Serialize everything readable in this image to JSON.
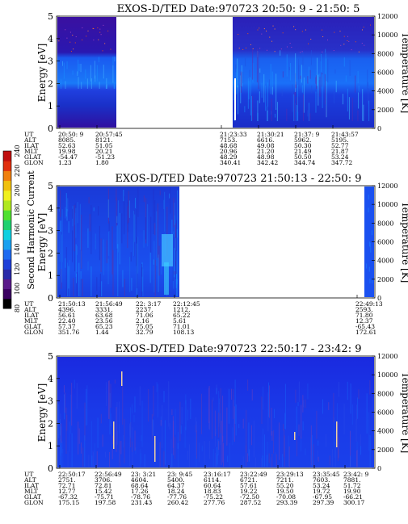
{
  "colorbar": {
    "label": "Second Harmonic Current",
    "ticks": [
      "80",
      "100",
      "120",
      "140",
      "160",
      "180",
      "200",
      "220",
      "240"
    ],
    "colors": [
      "#000000",
      "#3a0060",
      "#5a1a8a",
      "#2a2aa8",
      "#1f3fd8",
      "#1f6af0",
      "#1aa0f0",
      "#10d0e0",
      "#20d070",
      "#50e030",
      "#b0e820",
      "#f0f020",
      "#f0c010",
      "#f08010",
      "#e03010",
      "#c01010"
    ]
  },
  "chart_data": [
    {
      "type": "heatmap",
      "title": "EXOS-D/TED   Date:970723  20:50: 9 - 21:50: 5",
      "ylabel": "Energy [eV]",
      "y2label": "Temperature [K]",
      "ylim": [
        0,
        5
      ],
      "y2lim": [
        0,
        12000
      ],
      "yticks": [
        "0",
        "1",
        "2",
        "3",
        "4",
        "5"
      ],
      "y2ticks": [
        "0",
        "2000",
        "4000",
        "6000",
        "8000",
        "10000",
        "12000"
      ],
      "data_gap": true,
      "row_labels": [
        "UT",
        "ALT",
        "ILAT",
        "MLT",
        "GLAT",
        "GLON"
      ],
      "columns": [
        [
          "20:50: 9",
          "8085.",
          "52.63",
          "19.98",
          "-54.47",
          "1.23"
        ],
        [
          "20:57:45",
          "8121.",
          "51.05",
          "20.21",
          "-51.23",
          "1.80"
        ],
        [
          "21:23:33",
          "7153.",
          "48.68",
          "20.96",
          "48.29",
          "340.41"
        ],
        [
          "21:30:21",
          "6616.",
          "49.08",
          "21.20",
          "48.98",
          "342.42"
        ],
        [
          "21:37: 9",
          "5962.",
          "50.30",
          "21.49",
          "50.50",
          "344.74"
        ],
        [
          "21:43:57",
          "5195.",
          "52.77",
          "21.87",
          "53.24",
          "347.72"
        ]
      ]
    },
    {
      "type": "heatmap",
      "title": "EXOS-D/TED   Date:970723  21:50:13 - 22:50: 9",
      "ylabel": "Energy [eV]",
      "y2label": "Temperature [K]",
      "ylim": [
        0,
        5
      ],
      "y2lim": [
        0,
        12000
      ],
      "yticks": [
        "0",
        "1",
        "2",
        "3",
        "4",
        "5"
      ],
      "y2ticks": [
        "0",
        "2000",
        "4000",
        "6000",
        "8000",
        "10000",
        "12000"
      ],
      "row_labels": [
        "UT",
        "ALT",
        "ILAT",
        "MLT",
        "GLAT",
        "GLON"
      ],
      "columns": [
        [
          "21:50:13",
          "4396.",
          "56.61",
          "22.40",
          "57.37",
          "351.76"
        ],
        [
          "21:56:49",
          "3331.",
          "63.68",
          "23.56",
          "65.23",
          "1.44"
        ],
        [
          "22: 3:17",
          "2237.",
          "71.06",
          "2.16",
          "75.05",
          "32.79"
        ],
        [
          "22:12:45",
          "1212.",
          "65.22",
          "5.61",
          "71.01",
          "108.13"
        ],
        [
          "22:49:13",
          "2593.",
          "71.80",
          "12.37",
          "-65.43",
          "172.61"
        ]
      ]
    },
    {
      "type": "heatmap",
      "title": "EXOS-D/TED   Date:970723  22:50:17 - 23:42: 9",
      "ylabel": "Energy [eV]",
      "y2label": "Temperature [K]",
      "ylim": [
        0,
        5
      ],
      "y2lim": [
        0,
        12000
      ],
      "yticks": [
        "0",
        "1",
        "2",
        "3",
        "4",
        "5"
      ],
      "y2ticks": [
        "0",
        "2000",
        "4000",
        "6000",
        "8000",
        "10000",
        "12000"
      ],
      "row_labels": [
        "UT",
        "ALT",
        "ILAT",
        "MLT",
        "GLAT",
        "GLON"
      ],
      "columns": [
        [
          "22:50:17",
          "2751.",
          "72.71",
          "12.77",
          "-67.32",
          "175.15"
        ],
        [
          "22:56:49",
          "3706.",
          "72.81",
          "15.42",
          "-75.71",
          "197.58"
        ],
        [
          "23: 3:21",
          "4604.",
          "68.64",
          "17.26",
          "-78.76",
          "231.43"
        ],
        [
          "23: 9:45",
          "5400.",
          "64.37",
          "18.24",
          "-77.76",
          "260.42"
        ],
        [
          "23:16:17",
          "6114.",
          "60.64",
          "18.83",
          "-75.22",
          "277.76"
        ],
        [
          "23:22:49",
          "6721.",
          "57.61",
          "19.22",
          "-72.50",
          "287.52"
        ],
        [
          "23:29:13",
          "7211.",
          "55.20",
          "19.50",
          "-70.08",
          "293.39"
        ],
        [
          "23:35:45",
          "7603.",
          "53.24",
          "19.72",
          "-67.95",
          "297.39"
        ],
        [
          "23:42: 9",
          "7881.",
          "51.72",
          "19.90",
          "-66.21",
          "300.17"
        ]
      ]
    }
  ]
}
